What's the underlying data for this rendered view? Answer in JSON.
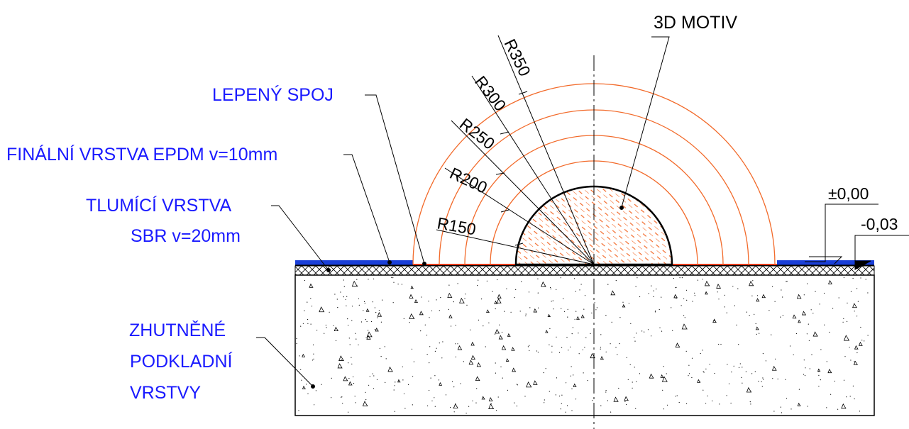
{
  "title": "3D MOTIV",
  "labels": {
    "glued_joint": "LEPENÝ SPOJ",
    "final_layer": "FINÁLNÍ VRSTVA EPDM v=10mm",
    "damping_layer_line1": "TLUMÍCÍ VRSTVA",
    "damping_layer_line2": "SBR v=20mm",
    "subbase_line1": "ZHUTNĚNÉ",
    "subbase_line2": "PODKLADNÍ",
    "subbase_line3": "VRSTVY"
  },
  "radii": [
    "R150",
    "R200",
    "R250",
    "R300",
    "R350"
  ],
  "levels": {
    "top": "±0,00",
    "lower": "-0,03"
  },
  "colors": {
    "label_blue": "#1a1aff",
    "arc_orange": "#f26a2a",
    "epdm_blue": "#1a3fd8",
    "line": "#000000"
  }
}
